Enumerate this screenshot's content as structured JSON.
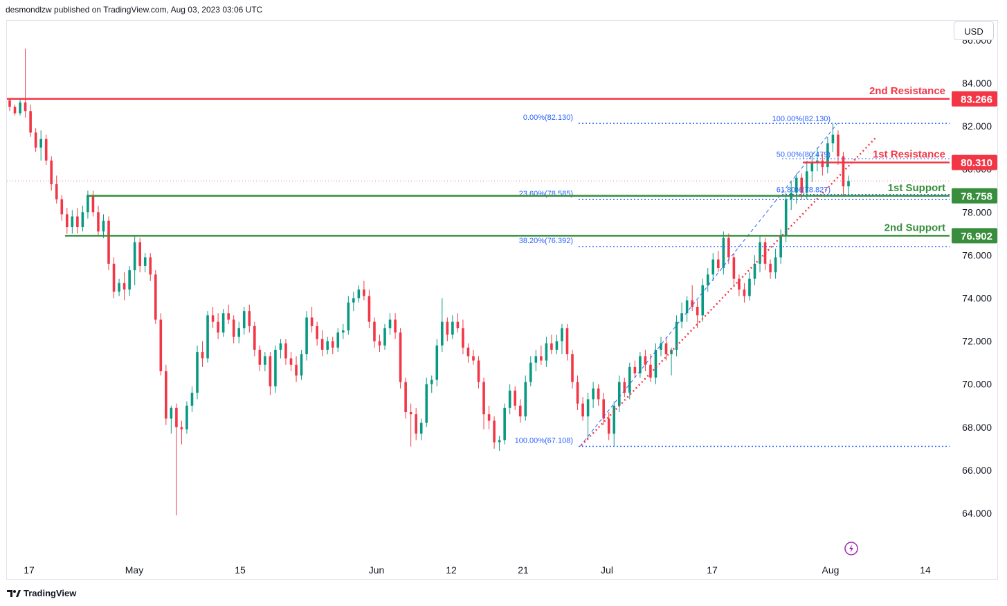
{
  "header": {
    "text": "desmondlzw published on TradingView.com, Aug 03, 2023 03:06 UTC"
  },
  "currency_button": {
    "label": "USD"
  },
  "footer": {
    "brand": "TradingView"
  },
  "colors": {
    "up": "#089981",
    "down": "#f23645",
    "resistance": "#f23645",
    "support": "#388e3c",
    "fib": "#2962ff",
    "trend": "#f23645"
  },
  "icons": {
    "logo": "tradingview-logo-icon",
    "lightning": "lightning-icon"
  },
  "chart_data": {
    "type": "candlestick",
    "ylim": [
      63.0,
      88.0
    ],
    "y_ticks": [
      "64.000",
      "66.000",
      "68.000",
      "70.000",
      "72.000",
      "74.000",
      "76.000",
      "78.000",
      "80.000",
      "82.000",
      "84.000",
      "86.000"
    ],
    "x_ticks": [
      "17",
      "May",
      "15",
      "Jun",
      "12",
      "21",
      "Jul",
      "17",
      "Aug",
      "14"
    ],
    "last_price": 79.45,
    "levels": [
      {
        "name": "2nd Resistance",
        "value": 83.266,
        "label": "83.266",
        "kind": "resistance"
      },
      {
        "name": "1st Resistance",
        "value": 80.31,
        "label": "80.310",
        "kind": "resistance"
      },
      {
        "name": "1st Support",
        "value": 78.758,
        "label": "78.758",
        "kind": "support"
      },
      {
        "name": "2nd Support",
        "value": 76.902,
        "label": "76.902",
        "kind": "support"
      }
    ],
    "fib_left": [
      {
        "label": "0.00%(82.130)",
        "value": 82.13
      },
      {
        "label": "23.60%(78.585)",
        "value": 78.585
      },
      {
        "label": "38.20%(76.392)",
        "value": 76.392
      },
      {
        "label": "100.00%(67.108)",
        "value": 67.108
      }
    ],
    "fib_right": [
      {
        "label": "100.00%(82.130)",
        "value": 82.13
      },
      {
        "label": "50.00%(80.479)",
        "value": 80.479
      },
      {
        "label": "61.80%(78.827)",
        "value": 78.827
      }
    ],
    "ohlc": [
      [
        83.2,
        83.3,
        82.7,
        82.9
      ],
      [
        82.9,
        83.0,
        82.5,
        82.6
      ],
      [
        82.6,
        83.3,
        82.5,
        83.1
      ],
      [
        83.1,
        85.6,
        82.4,
        82.7
      ],
      [
        82.7,
        83.0,
        81.5,
        81.7
      ],
      [
        81.7,
        81.9,
        80.8,
        81.0
      ],
      [
        81.0,
        81.8,
        80.4,
        81.4
      ],
      [
        81.4,
        81.6,
        80.2,
        80.4
      ],
      [
        80.4,
        80.6,
        79.0,
        79.3
      ],
      [
        79.3,
        79.7,
        78.4,
        78.6
      ],
      [
        78.6,
        78.8,
        77.6,
        77.9
      ],
      [
        77.9,
        78.2,
        77.0,
        77.3
      ],
      [
        77.3,
        78.1,
        77.0,
        77.8
      ],
      [
        77.8,
        78.2,
        77.0,
        77.3
      ],
      [
        77.3,
        78.3,
        77.1,
        78.0
      ],
      [
        78.0,
        79.0,
        77.7,
        78.8
      ],
      [
        78.8,
        79.0,
        77.8,
        78.0
      ],
      [
        78.0,
        78.3,
        76.9,
        77.1
      ],
      [
        77.1,
        77.9,
        76.8,
        77.6
      ],
      [
        77.6,
        77.8,
        75.3,
        75.6
      ],
      [
        75.6,
        75.9,
        74.0,
        74.3
      ],
      [
        74.3,
        74.9,
        74.1,
        74.7
      ],
      [
        74.7,
        75.2,
        73.9,
        74.4
      ],
      [
        74.4,
        75.5,
        74.1,
        75.3
      ],
      [
        75.3,
        76.9,
        74.6,
        76.6
      ],
      [
        76.6,
        76.8,
        75.2,
        75.5
      ],
      [
        75.5,
        76.1,
        75.2,
        75.9
      ],
      [
        75.9,
        76.1,
        74.8,
        75.1
      ],
      [
        75.1,
        75.3,
        72.8,
        73.0
      ],
      [
        73.0,
        73.3,
        70.4,
        70.6
      ],
      [
        70.6,
        70.9,
        68.1,
        68.4
      ],
      [
        68.4,
        69.0,
        67.7,
        68.9
      ],
      [
        68.9,
        69.1,
        63.9,
        68.0
      ],
      [
        68.0,
        68.3,
        67.2,
        67.9
      ],
      [
        67.9,
        69.2,
        67.7,
        69.0
      ],
      [
        69.0,
        69.9,
        68.7,
        69.6
      ],
      [
        69.6,
        71.8,
        69.3,
        71.5
      ],
      [
        71.5,
        72.0,
        70.8,
        71.2
      ],
      [
        71.2,
        73.4,
        71.0,
        73.2
      ],
      [
        73.2,
        73.6,
        72.6,
        72.9
      ],
      [
        72.9,
        73.3,
        72.1,
        72.4
      ],
      [
        72.4,
        73.5,
        72.2,
        73.3
      ],
      [
        73.3,
        73.7,
        72.8,
        73.0
      ],
      [
        73.0,
        73.2,
        71.9,
        72.2
      ],
      [
        72.2,
        72.9,
        71.9,
        72.6
      ],
      [
        72.6,
        73.6,
        72.3,
        73.4
      ],
      [
        73.4,
        73.7,
        72.4,
        72.7
      ],
      [
        72.7,
        72.9,
        71.3,
        71.6
      ],
      [
        71.6,
        71.8,
        70.6,
        70.9
      ],
      [
        70.9,
        71.5,
        70.6,
        71.3
      ],
      [
        71.3,
        71.5,
        69.5,
        69.9
      ],
      [
        69.9,
        71.8,
        69.6,
        71.6
      ],
      [
        71.6,
        72.1,
        71.2,
        71.9
      ],
      [
        71.9,
        72.1,
        70.9,
        71.2
      ],
      [
        71.2,
        71.5,
        70.6,
        70.9
      ],
      [
        70.9,
        71.3,
        70.1,
        70.4
      ],
      [
        70.4,
        71.6,
        70.2,
        71.4
      ],
      [
        71.4,
        73.4,
        71.1,
        73.1
      ],
      [
        73.1,
        73.6,
        72.4,
        72.7
      ],
      [
        72.7,
        72.9,
        71.8,
        72.1
      ],
      [
        72.1,
        72.5,
        71.3,
        71.6
      ],
      [
        71.6,
        72.2,
        71.4,
        72.0
      ],
      [
        72.0,
        72.2,
        71.4,
        71.7
      ],
      [
        71.7,
        72.6,
        71.5,
        72.4
      ],
      [
        72.4,
        72.8,
        72.1,
        72.5
      ],
      [
        72.5,
        74.1,
        72.3,
        73.8
      ],
      [
        73.8,
        74.3,
        73.4,
        74.0
      ],
      [
        74.0,
        74.6,
        73.8,
        74.4
      ],
      [
        74.4,
        74.8,
        73.9,
        74.1
      ],
      [
        74.1,
        74.4,
        72.6,
        72.9
      ],
      [
        72.9,
        73.1,
        71.7,
        72.0
      ],
      [
        72.0,
        72.3,
        71.5,
        71.8
      ],
      [
        71.8,
        72.8,
        71.6,
        72.6
      ],
      [
        72.6,
        73.3,
        72.3,
        73.0
      ],
      [
        73.0,
        73.3,
        72.1,
        72.4
      ],
      [
        72.4,
        72.6,
        69.8,
        70.1
      ],
      [
        70.1,
        70.3,
        68.4,
        68.7
      ],
      [
        68.7,
        69.1,
        67.1,
        68.6
      ],
      [
        68.6,
        68.9,
        67.4,
        67.7
      ],
      [
        67.7,
        68.4,
        67.4,
        68.2
      ],
      [
        68.2,
        70.3,
        68.0,
        70.0
      ],
      [
        70.0,
        70.4,
        69.6,
        70.2
      ],
      [
        70.2,
        72.1,
        69.9,
        71.8
      ],
      [
        71.8,
        74.0,
        71.5,
        72.9
      ],
      [
        72.9,
        73.1,
        72.0,
        72.3
      ],
      [
        72.3,
        73.2,
        72.1,
        72.9
      ],
      [
        72.9,
        73.3,
        72.4,
        72.6
      ],
      [
        72.6,
        73.0,
        71.4,
        71.7
      ],
      [
        71.7,
        71.9,
        71.0,
        71.3
      ],
      [
        71.3,
        71.6,
        70.9,
        71.1
      ],
      [
        71.1,
        71.3,
        69.8,
        70.1
      ],
      [
        70.1,
        70.3,
        67.9,
        68.6
      ],
      [
        68.6,
        69.0,
        67.9,
        68.3
      ],
      [
        68.3,
        68.5,
        67.0,
        67.3
      ],
      [
        67.3,
        67.6,
        66.9,
        67.4
      ],
      [
        67.4,
        69.1,
        67.2,
        68.9
      ],
      [
        68.9,
        70.0,
        68.6,
        69.7
      ],
      [
        69.7,
        69.9,
        68.8,
        69.0
      ],
      [
        69.0,
        69.3,
        68.2,
        68.5
      ],
      [
        68.5,
        70.4,
        68.3,
        70.1
      ],
      [
        70.1,
        71.3,
        69.9,
        71.0
      ],
      [
        71.0,
        71.6,
        70.6,
        71.3
      ],
      [
        71.3,
        71.8,
        70.9,
        71.1
      ],
      [
        71.1,
        72.2,
        70.8,
        71.9
      ],
      [
        71.9,
        72.3,
        71.4,
        71.6
      ],
      [
        71.6,
        72.3,
        71.4,
        72.0
      ],
      [
        72.0,
        72.8,
        71.4,
        72.6
      ],
      [
        72.6,
        72.8,
        71.1,
        71.4
      ],
      [
        71.4,
        71.6,
        69.8,
        70.1
      ],
      [
        70.1,
        70.4,
        68.8,
        69.1
      ],
      [
        69.1,
        69.4,
        68.3,
        68.5
      ],
      [
        68.5,
        69.6,
        67.4,
        69.3
      ],
      [
        69.3,
        70.1,
        68.9,
        69.8
      ],
      [
        69.8,
        70.0,
        69.0,
        69.3
      ],
      [
        69.3,
        69.6,
        68.1,
        68.4
      ],
      [
        68.4,
        68.7,
        67.4,
        67.7
      ],
      [
        67.7,
        69.2,
        67.1,
        69.0
      ],
      [
        69.0,
        70.4,
        68.7,
        70.1
      ],
      [
        70.1,
        70.3,
        69.4,
        69.6
      ],
      [
        69.6,
        71.0,
        69.3,
        70.8
      ],
      [
        70.8,
        71.1,
        70.3,
        70.5
      ],
      [
        70.5,
        71.5,
        70.3,
        71.3
      ],
      [
        71.3,
        71.6,
        70.6,
        70.9
      ],
      [
        70.9,
        71.4,
        70.1,
        70.3
      ],
      [
        70.3,
        71.9,
        70.0,
        71.6
      ],
      [
        71.6,
        72.2,
        71.3,
        71.9
      ],
      [
        71.9,
        72.2,
        71.1,
        71.4
      ],
      [
        71.4,
        71.7,
        70.4,
        71.6
      ],
      [
        71.6,
        73.2,
        71.3,
        72.9
      ],
      [
        72.9,
        73.8,
        72.6,
        73.3
      ],
      [
        73.3,
        74.1,
        72.9,
        73.9
      ],
      [
        73.9,
        74.6,
        73.4,
        73.6
      ],
      [
        73.6,
        73.9,
        72.6,
        73.2
      ],
      [
        73.2,
        74.9,
        72.9,
        74.6
      ],
      [
        74.6,
        75.4,
        74.3,
        75.1
      ],
      [
        75.1,
        76.1,
        74.8,
        75.8
      ],
      [
        75.8,
        76.2,
        75.2,
        75.4
      ],
      [
        75.4,
        77.1,
        75.1,
        76.8
      ],
      [
        76.8,
        77.0,
        75.6,
        75.9
      ],
      [
        75.9,
        76.1,
        74.6,
        74.9
      ],
      [
        74.9,
        75.1,
        74.1,
        74.4
      ],
      [
        74.4,
        74.7,
        73.8,
        74.1
      ],
      [
        74.1,
        75.2,
        73.9,
        74.9
      ],
      [
        74.9,
        76.0,
        74.6,
        75.6
      ],
      [
        75.6,
        76.9,
        75.2,
        76.6
      ],
      [
        76.6,
        76.8,
        75.3,
        75.6
      ],
      [
        75.6,
        75.8,
        74.9,
        75.2
      ],
      [
        75.2,
        76.3,
        74.9,
        75.9
      ],
      [
        75.9,
        77.2,
        75.6,
        76.9
      ],
      [
        76.9,
        78.9,
        76.6,
        78.6
      ],
      [
        78.6,
        79.4,
        78.1,
        78.9
      ],
      [
        78.9,
        79.8,
        78.4,
        79.6
      ],
      [
        79.6,
        79.8,
        78.6,
        78.9
      ],
      [
        78.9,
        80.3,
        78.6,
        79.9
      ],
      [
        79.9,
        80.7,
        79.4,
        80.3
      ],
      [
        80.3,
        81.0,
        79.9,
        80.4
      ],
      [
        80.4,
        80.7,
        79.7,
        80.1
      ],
      [
        80.1,
        81.5,
        79.8,
        81.2
      ],
      [
        81.2,
        82.1,
        80.8,
        81.6
      ],
      [
        81.6,
        81.8,
        80.2,
        80.6
      ],
      [
        80.6,
        80.8,
        78.8,
        79.2
      ],
      [
        79.2,
        79.7,
        78.8,
        79.45
      ]
    ]
  }
}
